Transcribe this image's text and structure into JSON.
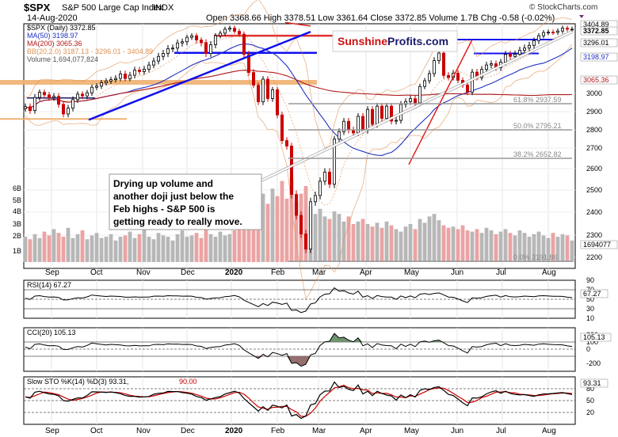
{
  "header": {
    "symbol": "$SPX",
    "name": "S&P 500 Large Cap Index",
    "exchange": "INDX",
    "date": "14-Aug-2020",
    "ohlc": "Open 3368.66  High 3378.51  Low 3361.64  Close 3372.85  Volume 1.7B  Chg -0.58 (-0.02%)",
    "watermark": "© StockCharts.com",
    "brand_red": "Sunshine",
    "brand_blue": "Profits.com"
  },
  "legend": [
    {
      "text": "$SPX (Daily) 3372.85",
      "color": "#000000"
    },
    {
      "text": "MA(50) 3198.97",
      "color": "#2030c0"
    },
    {
      "text": "MA(200) 3065.36",
      "color": "#b01818"
    },
    {
      "text": "BB(20,2.0) 3187.13 - 3296.01 - 3404.89",
      "color": "#e09050"
    },
    {
      "text": "Volume 1,694,077,824",
      "color": "#555555"
    }
  ],
  "annotation": {
    "lines": [
      "Drying up volume and",
      "another doji just below the",
      "Feb highs - S&P 500 is",
      "getting ready to really move."
    ]
  },
  "fib_labels": [
    {
      "text": "61.8% 2937.59",
      "value": 2937.59
    },
    {
      "text": "50.0% 2795.21",
      "value": 2795.21
    },
    {
      "text": "38.2% 2652.82",
      "value": 2652.82
    },
    {
      "text": "0.0% 2191.86",
      "value": 2191.86
    }
  ],
  "months": [
    "Sep",
    "Oct",
    "Nov",
    "Dec",
    "2020",
    "Feb",
    "Mar",
    "Apr",
    "May",
    "Jun",
    "Jul",
    "Aug"
  ],
  "chart_data": {
    "type": "line",
    "price": {
      "close": [
        2927,
        2906,
        2978,
        3007,
        2992,
        2977,
        2984,
        2940,
        2887,
        2919,
        2966,
        2996,
        2986,
        3004,
        3039,
        3046,
        3067,
        3078,
        3087,
        3095,
        3120,
        3094,
        3113,
        3141,
        3133,
        3146,
        3169,
        3191,
        3215,
        3230,
        3254,
        3257,
        3283,
        3289,
        3316,
        3327,
        3298,
        3284,
        3230,
        3274,
        3327,
        3345,
        3373,
        3380,
        3358,
        3338,
        3225,
        3128,
        3052,
        2954,
        3090,
        2972,
        3023,
        2882,
        2741,
        2711,
        2480,
        2386,
        2305,
        2237,
        2447,
        2475,
        2541,
        2584,
        2527,
        2749,
        2790,
        2847,
        2799,
        2783,
        2874,
        2797,
        2912,
        2830,
        2930,
        2863,
        2930,
        2848,
        2852,
        2940,
        2955,
        2971,
        2948,
        3044,
        3080,
        3122,
        3193,
        3232,
        3112,
        3100,
        3124,
        3083,
        3053,
        3009,
        3130,
        3100,
        3145,
        3169,
        3176,
        3155,
        3185,
        3225,
        3215,
        3226,
        3246,
        3257,
        3271,
        3295,
        3327,
        3349,
        3352,
        3351,
        3360,
        3380,
        3373,
        3373
      ],
      "ma50": 3198.97,
      "ma200": 3065.36,
      "bb": {
        "lower": 3187.13,
        "mid": 3296.01,
        "upper": 3404.89
      },
      "horizontal_levels": [
        3396,
        3327,
        3246,
        3233,
        3120
      ]
    },
    "volume_values": [
      2.0,
      1.8,
      2.2,
      1.9,
      2.4,
      2.1,
      2.6,
      2.3,
      2.0,
      2.7,
      1.9,
      2.2,
      2.5,
      1.8,
      2.1,
      2.3,
      1.9,
      2.0,
      2.2,
      1.7,
      2.0,
      2.1,
      2.4,
      1.9,
      2.2,
      2.6,
      2.0,
      1.8,
      2.3,
      2.1,
      2.0,
      1.7,
      2.2,
      2.5,
      2.0,
      2.1,
      2.3,
      1.9,
      2.6,
      2.2,
      2.0,
      2.4,
      2.1,
      2.2,
      2.5,
      3.1,
      3.4,
      4.2,
      5.0,
      4.4,
      5.4,
      4.6,
      5.8,
      5.2,
      6.4,
      5.0,
      6.6,
      4.8,
      5.4,
      6.0,
      4.4,
      3.8,
      4.2,
      3.6,
      3.4,
      4.0,
      3.8,
      3.2,
      3.6,
      3.0,
      3.2,
      3.4,
      3.0,
      2.8,
      3.1,
      2.7,
      3.2,
      2.9,
      2.6,
      2.4,
      2.8,
      3.0,
      2.6,
      3.4,
      3.1,
      3.6,
      3.8,
      3.3,
      2.9,
      2.7,
      2.8,
      2.6,
      2.9,
      2.5,
      2.4,
      2.6,
      2.3,
      2.7,
      2.5,
      2.2,
      2.4,
      2.6,
      2.3,
      2.1,
      2.5,
      2.3,
      2.0,
      2.2,
      2.4,
      2.1,
      1.9,
      2.3,
      2.0,
      2.2,
      2.1,
      1.7
    ],
    "rsi": {
      "label": "RSI(14) 67.27",
      "value": 67.27,
      "levels": [
        70,
        50,
        30
      ],
      "axis": [
        90,
        70,
        50,
        30,
        10
      ]
    },
    "cci": {
      "label": "CCI(20) 105.13",
      "value": 105.13,
      "levels": [
        100,
        0,
        -100
      ],
      "axis": [
        200,
        100,
        0,
        -200
      ]
    },
    "sto": {
      "label_k": "Slow STO %K(14) %D(3) 93.31,",
      "label_d": "90.00",
      "k": 93.31,
      "d": 90.0,
      "levels": [
        80,
        50,
        20
      ],
      "axis": [
        80,
        50,
        20
      ]
    },
    "price_axis": [
      3000,
      2900,
      2800,
      2700,
      2600,
      2500,
      2400,
      2300,
      2200
    ],
    "price_axis_tags": [
      {
        "text": "3404.89",
        "value": 3404.89,
        "color": "#000000"
      },
      {
        "text": "3372.85",
        "value": 3372.85,
        "color": "#000000",
        "bold": true
      },
      {
        "text": "3296.01",
        "value": 3296.01,
        "color": "#000000"
      },
      {
        "text": "3198.97",
        "value": 3198.97,
        "color": "#2030c0"
      },
      {
        "text": "3065.36",
        "value": 3065.36,
        "color": "#b01818"
      },
      {
        "text": "1694077",
        "value": 1694077,
        "color": "#000000"
      }
    ],
    "volume_axis": [
      "6B",
      "5B",
      "4B",
      "3B",
      "2B",
      "1B"
    ],
    "colors": {
      "up": "#000000",
      "down": "#cc0000",
      "volume_up": "#b7b7b7",
      "volume_down": "#eba3a3",
      "bb": "#e09050",
      "ma50": "#2030c0",
      "ma200": "#b01818",
      "trend": "#1010ee",
      "rsi": "#000000",
      "cci_pos": "#5e8a5e",
      "cci_neg": "#8a5e5e",
      "sto_k": "#000000",
      "sto_d": "#cc0000"
    }
  }
}
